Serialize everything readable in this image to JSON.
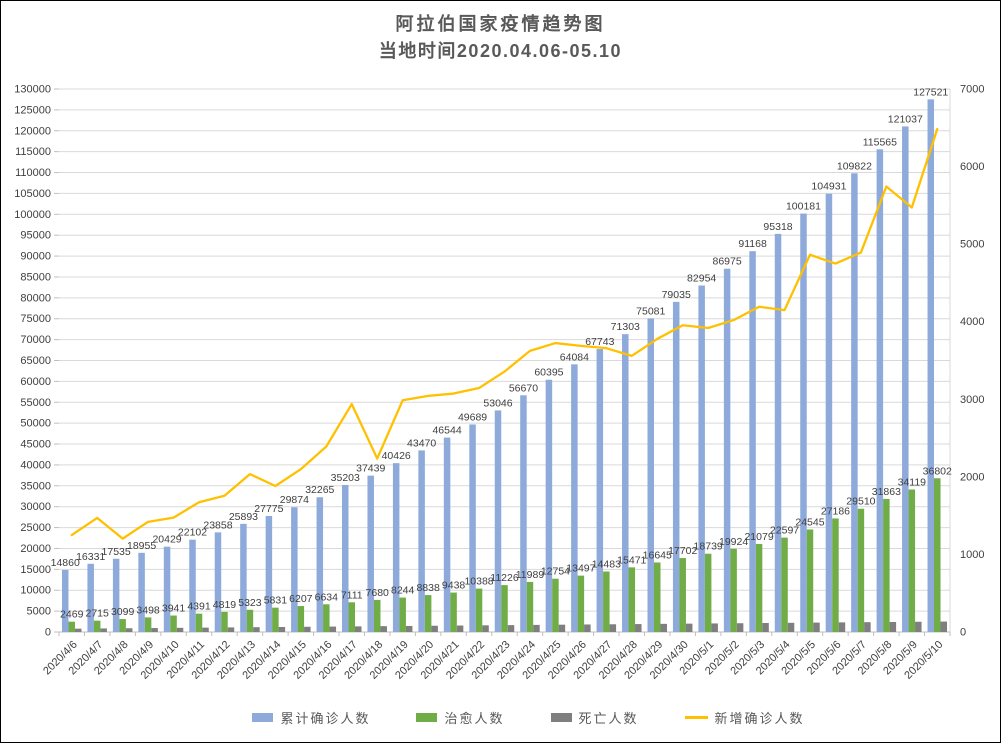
{
  "title": {
    "line1": "阿拉伯国家疫情趋势图",
    "line2": "当地时间2020.04.06-05.10",
    "color": "#595959"
  },
  "theme": {
    "background": "#FFFFFF",
    "border": "#000000",
    "grid": "#D9D9D9",
    "axis_line": "#BFBFBF",
    "tick_text": "#404040",
    "data_label_text": "#404040",
    "legend_text": "#595959"
  },
  "chart_data": {
    "type": "combo-bar-line",
    "categories": [
      "2020/4/6",
      "2020/4/7",
      "2020/4/8",
      "2020/4/9",
      "2020/4/10",
      "2020/4/11",
      "2020/4/12",
      "2020/4/13",
      "2020/4/14",
      "2020/4/15",
      "2020/4/16",
      "2020/4/17",
      "2020/4/18",
      "2020/4/19",
      "2020/4/20",
      "2020/4/21",
      "2020/4/22",
      "2020/4/23",
      "2020/4/24",
      "2020/4/25",
      "2020/4/26",
      "2020/4/27",
      "2020/4/28",
      "2020/4/29",
      "2020/4/30",
      "2020/5/1",
      "2020/5/2",
      "2020/5/3",
      "2020/5/4",
      "2020/5/5",
      "2020/5/6",
      "2020/5/7",
      "2020/5/8",
      "2020/5/9",
      "2020/5/10"
    ],
    "bar_series": [
      {
        "name": "累计确诊人数",
        "color": "#8EAADB",
        "axis": "left",
        "labels_visible": true,
        "values": [
          14860,
          16331,
          17535,
          18955,
          20429,
          22102,
          23858,
          25893,
          27775,
          29874,
          32265,
          35203,
          37439,
          40426,
          43470,
          46544,
          49689,
          53046,
          56670,
          60395,
          64084,
          67743,
          71303,
          75081,
          79035,
          82954,
          86975,
          91168,
          95318,
          100181,
          104931,
          109822,
          115565,
          121037,
          127521
        ]
      },
      {
        "name": "治愈人数",
        "color": "#70AD47",
        "axis": "left",
        "labels_visible": true,
        "values": [
          2469,
          2715,
          3099,
          3498,
          3941,
          4391,
          4819,
          5323,
          5831,
          6207,
          6634,
          7111,
          7680,
          8244,
          8838,
          9438,
          10388,
          11226,
          11989,
          12754,
          13497,
          14483,
          15471,
          16645,
          17702,
          18739,
          19924,
          21079,
          22597,
          24545,
          27186,
          29510,
          31863,
          34119,
          36802
        ]
      },
      {
        "name": "死亡人数",
        "color": "#7F7F7F",
        "axis": "left",
        "labels_visible": false,
        "estimated": true,
        "values": [
          800,
          850,
          900,
          950,
          1000,
          1050,
          1100,
          1150,
          1200,
          1250,
          1300,
          1350,
          1400,
          1450,
          1500,
          1550,
          1600,
          1650,
          1700,
          1750,
          1800,
          1850,
          1900,
          1950,
          2000,
          2050,
          2100,
          2150,
          2200,
          2250,
          2300,
          2350,
          2400,
          2450,
          2500
        ]
      }
    ],
    "line_series": [
      {
        "name": "新增确诊人数",
        "color": "#FFC000",
        "axis": "right",
        "estimated_first_point": true,
        "values": [
          1250,
          1471,
          1204,
          1420,
          1474,
          1673,
          1756,
          2035,
          1882,
          2099,
          2391,
          2938,
          2236,
          2987,
          3044,
          3074,
          3145,
          3357,
          3624,
          3725,
          3689,
          3659,
          3560,
          3778,
          3954,
          3919,
          4021,
          4193,
          4150,
          4863,
          4750,
          4891,
          5743,
          5472,
          6484
        ]
      }
    ],
    "left_axis": {
      "min": 0,
      "max": 130000,
      "step": 5000
    },
    "right_axis": {
      "min": 0,
      "max": 7000,
      "step": 1000
    },
    "grid": true,
    "legend_position": "bottom",
    "x_label_rotation": -45
  },
  "legend": {
    "items": [
      {
        "label": "累计确诊人数",
        "color": "#8EAADB",
        "swatch": "bar"
      },
      {
        "label": "治愈人数",
        "color": "#70AD47",
        "swatch": "bar"
      },
      {
        "label": "死亡人数",
        "color": "#7F7F7F",
        "swatch": "bar"
      },
      {
        "label": "新增确诊人数",
        "color": "#FFC000",
        "swatch": "line"
      }
    ]
  }
}
